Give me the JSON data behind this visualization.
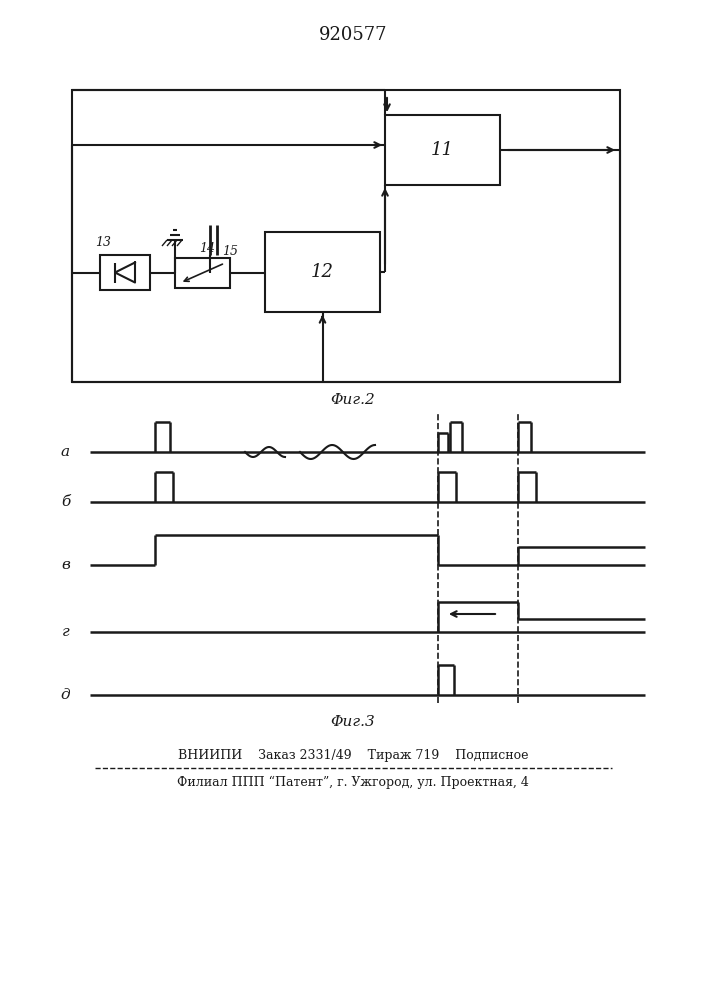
{
  "title": "920577",
  "fig2_label": "Φиг.2",
  "fig3_label": "Φиг.3",
  "footer_line1": "ВНИИПИ    Заказ 2331/49    Тираж 719    Подписное",
  "footer_line2": "Филиал ППП “Патент”, г. Ужгород, ул. Проектная, 4",
  "bg_color": "#ffffff",
  "line_color": "#1a1a1a",
  "label_a": "а",
  "label_b": "б",
  "label_v": "в",
  "label_g": "г",
  "label_d": "д"
}
